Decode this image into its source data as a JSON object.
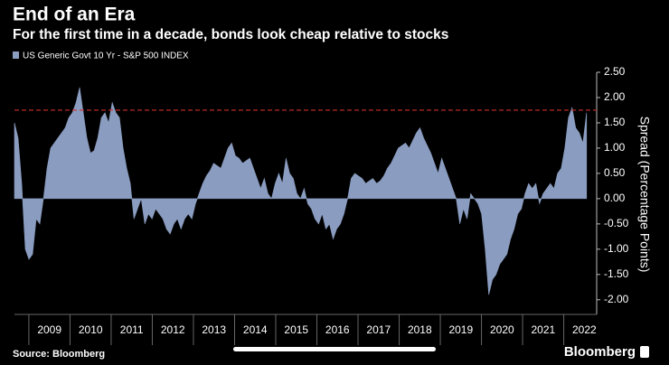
{
  "chart_data": {
    "type": "area",
    "title": "End of an Era",
    "subtitle": "For the first time in a decade, bonds look cheap relative to stocks",
    "y_axis_label": "Spread (Percentage Points)",
    "source": "Source: Bloomberg",
    "brand": "Bloomberg",
    "xlim": [
      2008.65,
      2022.8
    ],
    "xticks": [
      2009,
      2010,
      2011,
      2012,
      2013,
      2014,
      2015,
      2016,
      2017,
      2018,
      2019,
      2020,
      2021,
      2022
    ],
    "ylim": [
      -2.29,
      2.5
    ],
    "yticks": [
      {
        "value": 2.5,
        "label": "2.50"
      },
      {
        "value": 2,
        "label": "2.00"
      },
      {
        "value": 1.5,
        "label": "1.50"
      },
      {
        "value": 1,
        "label": "1.00"
      },
      {
        "value": 0.5,
        "label": "0.50"
      },
      {
        "value": 0,
        "label": "0.00"
      },
      {
        "value": -0.5,
        "label": "-0.50"
      },
      {
        "value": -1,
        "label": "-1.00"
      },
      {
        "value": -1.5,
        "label": "-1.50"
      },
      {
        "value": -2,
        "label": "-2.00"
      }
    ],
    "reference_line": {
      "value": 1.75,
      "color": "#d0312d"
    },
    "x": [
      2008.65,
      2008.738,
      2008.826,
      2008.914,
      2009.002,
      2009.09,
      2009.178,
      2009.266,
      2009.354,
      2009.442,
      2009.53,
      2009.618,
      2009.706,
      2009.794,
      2009.882,
      2009.97,
      2010.058,
      2010.146,
      2010.234,
      2010.322,
      2010.41,
      2010.498,
      2010.586,
      2010.674,
      2010.762,
      2010.85,
      2010.938,
      2011.026,
      2011.114,
      2011.202,
      2011.29,
      2011.378,
      2011.466,
      2011.554,
      2011.642,
      2011.73,
      2011.818,
      2011.906,
      2011.994,
      2012.082,
      2012.17,
      2012.258,
      2012.346,
      2012.434,
      2012.522,
      2012.61,
      2012.698,
      2012.786,
      2012.874,
      2012.962,
      2013.05,
      2013.138,
      2013.226,
      2013.314,
      2013.402,
      2013.49,
      2013.578,
      2013.666,
      2013.754,
      2013.842,
      2013.93,
      2014.018,
      2014.106,
      2014.194,
      2014.282,
      2014.37,
      2014.458,
      2014.546,
      2014.634,
      2014.722,
      2014.81,
      2014.898,
      2014.986,
      2015.074,
      2015.162,
      2015.25,
      2015.338,
      2015.426,
      2015.514,
      2015.602,
      2015.69,
      2015.778,
      2015.866,
      2015.954,
      2016.042,
      2016.13,
      2016.218,
      2016.306,
      2016.394,
      2016.482,
      2016.57,
      2016.658,
      2016.746,
      2016.834,
      2016.922,
      2017.01,
      2017.098,
      2017.186,
      2017.274,
      2017.362,
      2017.45,
      2017.538,
      2017.626,
      2017.714,
      2017.802,
      2017.89,
      2017.978,
      2018.066,
      2018.154,
      2018.242,
      2018.33,
      2018.418,
      2018.506,
      2018.594,
      2018.682,
      2018.77,
      2018.858,
      2018.946,
      2019.034,
      2019.122,
      2019.21,
      2019.298,
      2019.386,
      2019.474,
      2019.562,
      2019.65,
      2019.738,
      2019.826,
      2019.914,
      2020.002,
      2020.09,
      2020.178,
      2020.266,
      2020.354,
      2020.442,
      2020.53,
      2020.618,
      2020.706,
      2020.794,
      2020.882,
      2020.97,
      2021.058,
      2021.146,
      2021.234,
      2021.322,
      2021.41,
      2021.498,
      2021.586,
      2021.674,
      2021.762,
      2021.85,
      2021.938,
      2022.026,
      2022.114,
      2022.202,
      2022.29,
      2022.378,
      2022.466,
      2022.554
    ],
    "series": [
      {
        "name": "US Generic Govt 10 Yr - S&P 500 INDEX",
        "color": "#8a9cc0",
        "values": [
          1.5,
          1.2,
          0.3,
          -1.0,
          -1.2,
          -1.1,
          -0.4,
          -0.5,
          0.0,
          0.6,
          1.0,
          1.1,
          1.2,
          1.3,
          1.4,
          1.6,
          1.7,
          1.9,
          2.2,
          1.7,
          1.2,
          0.9,
          0.95,
          1.2,
          1.6,
          1.7,
          1.5,
          1.9,
          1.7,
          1.6,
          1.0,
          0.6,
          0.3,
          -0.4,
          -0.2,
          0.0,
          -0.5,
          -0.3,
          -0.4,
          -0.2,
          -0.3,
          -0.4,
          -0.6,
          -0.7,
          -0.5,
          -0.4,
          -0.6,
          -0.4,
          -0.3,
          -0.4,
          -0.1,
          0.1,
          0.3,
          0.45,
          0.55,
          0.7,
          0.65,
          0.6,
          0.8,
          1.0,
          1.1,
          0.85,
          0.8,
          0.7,
          0.75,
          0.8,
          0.6,
          0.4,
          0.2,
          0.4,
          0.1,
          0.0,
          0.3,
          0.5,
          0.3,
          0.8,
          0.5,
          0.4,
          0.1,
          0.0,
          0.2,
          -0.1,
          -0.2,
          -0.4,
          -0.5,
          -0.3,
          -0.6,
          -0.5,
          -0.8,
          -0.6,
          -0.5,
          -0.3,
          0.0,
          0.4,
          0.5,
          0.45,
          0.4,
          0.3,
          0.35,
          0.4,
          0.3,
          0.35,
          0.45,
          0.6,
          0.7,
          0.85,
          1.0,
          1.05,
          1.1,
          1.0,
          1.15,
          1.3,
          1.4,
          1.2,
          1.05,
          0.9,
          0.7,
          0.5,
          0.8,
          0.6,
          0.4,
          0.2,
          0.0,
          -0.5,
          -0.2,
          -0.4,
          0.1,
          0.0,
          -0.1,
          -0.3,
          -1.0,
          -1.9,
          -1.6,
          -1.5,
          -1.3,
          -1.2,
          -1.1,
          -0.8,
          -0.6,
          -0.3,
          -0.2,
          0.1,
          0.3,
          0.2,
          0.3,
          -0.1,
          0.1,
          0.2,
          0.3,
          0.2,
          0.5,
          0.6,
          1.0,
          1.6,
          1.8,
          1.4,
          1.3,
          1.1,
          1.7
        ]
      }
    ]
  }
}
